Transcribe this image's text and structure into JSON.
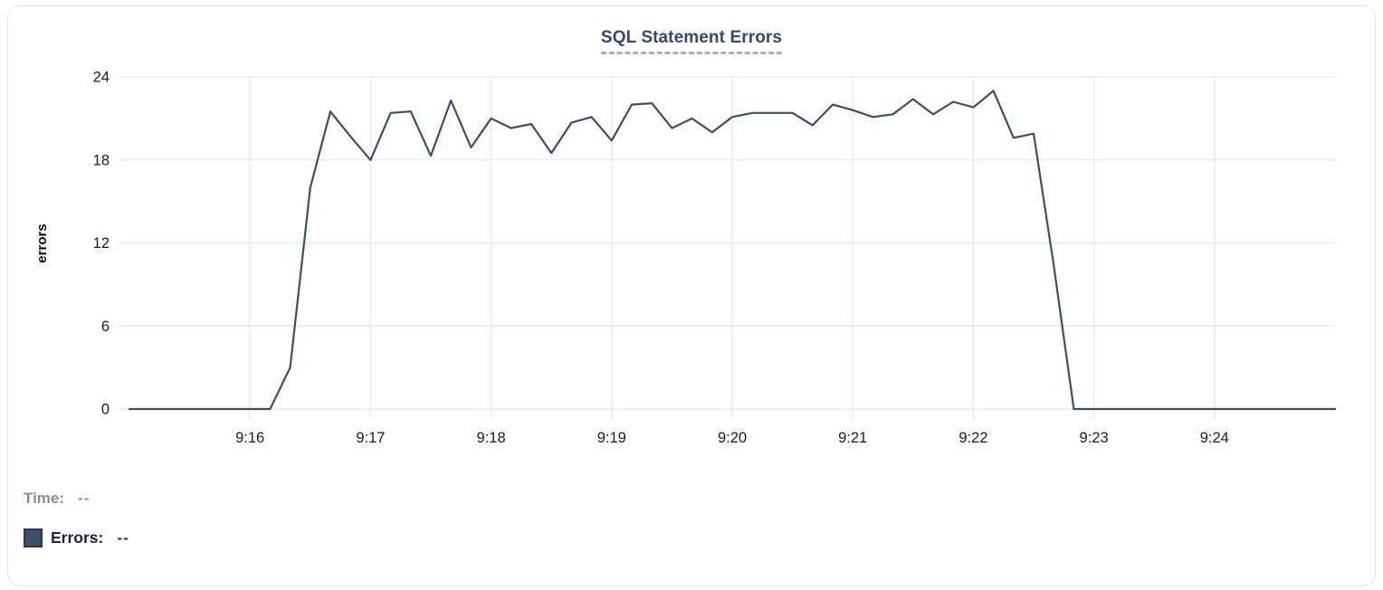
{
  "card": {
    "title": "SQL Statement Errors"
  },
  "readout": {
    "time_label": "Time:",
    "time_value": "--",
    "errors_label": "Errors:",
    "errors_value": "--",
    "swatch_color": "#3f4e6d"
  },
  "chart_data": {
    "type": "line",
    "title": "SQL Statement Errors",
    "xlabel": "",
    "ylabel": "errors",
    "ylim": [
      0,
      24
    ],
    "y_ticks": [
      0,
      6,
      12,
      18,
      24
    ],
    "x_ticks": [
      "9:16",
      "9:17",
      "9:18",
      "9:19",
      "9:20",
      "9:21",
      "9:22",
      "9:23",
      "9:24"
    ],
    "x_range": [
      "9:15:00",
      "9:25:00"
    ],
    "sample_interval_seconds": 10,
    "grid": true,
    "legend_position": "bottom-left",
    "line_color": "#3e4d6c",
    "grid_color": "#e9eaed",
    "tick_label_color": "#1c1c1f",
    "series": [
      {
        "name": "Errors",
        "times": [
          "9:15:00",
          "9:15:10",
          "9:15:20",
          "9:15:30",
          "9:15:40",
          "9:15:50",
          "9:16:00",
          "9:16:10",
          "9:16:20",
          "9:16:30",
          "9:16:40",
          "9:16:50",
          "9:17:00",
          "9:17:10",
          "9:17:20",
          "9:17:30",
          "9:17:40",
          "9:17:50",
          "9:18:00",
          "9:18:10",
          "9:18:20",
          "9:18:30",
          "9:18:40",
          "9:18:50",
          "9:19:00",
          "9:19:10",
          "9:19:20",
          "9:19:30",
          "9:19:40",
          "9:19:50",
          "9:20:00",
          "9:20:10",
          "9:20:20",
          "9:20:30",
          "9:20:40",
          "9:20:50",
          "9:21:00",
          "9:21:10",
          "9:21:20",
          "9:21:30",
          "9:21:40",
          "9:21:50",
          "9:22:00",
          "9:22:10",
          "9:22:20",
          "9:22:30",
          "9:22:40",
          "9:22:50",
          "9:23:00",
          "9:23:10",
          "9:23:20",
          "9:23:30",
          "9:23:40",
          "9:23:50",
          "9:24:00",
          "9:24:10",
          "9:24:20",
          "9:24:30",
          "9:24:40",
          "9:24:50",
          "9:25:00"
        ],
        "values": [
          0,
          0,
          0,
          0,
          0,
          0,
          0,
          0,
          3,
          16,
          21.5,
          19.7,
          18,
          21.4,
          21.5,
          18.3,
          22.3,
          18.9,
          21,
          20.3,
          20.6,
          18.5,
          20.7,
          21.1,
          19.4,
          22,
          22.1,
          20.3,
          21,
          20,
          21.1,
          21.4,
          21.4,
          21.4,
          20.5,
          22,
          21.6,
          21.1,
          21.3,
          22.4,
          21.3,
          22.2,
          21.8,
          23,
          19.6,
          19.9,
          10.4,
          0,
          0,
          0,
          0,
          0,
          0,
          0,
          0,
          0,
          0,
          0,
          0,
          0,
          0
        ]
      }
    ]
  }
}
